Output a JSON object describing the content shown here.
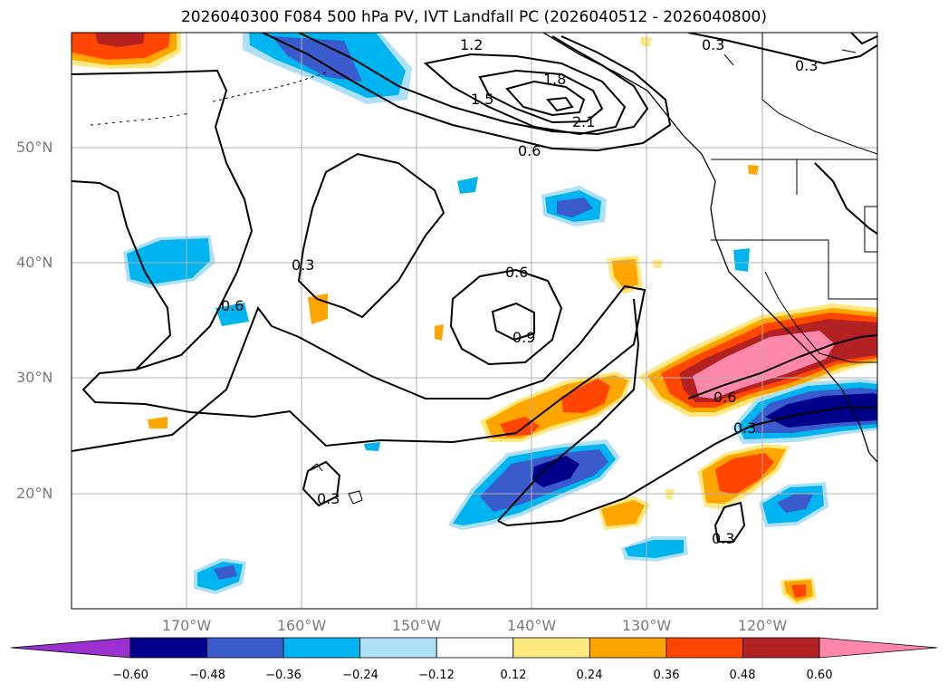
{
  "title": "2026040300 F084 500 hPa PV, IVT Landfall PC (2026040512 - 2026040800)",
  "lat_labels": [
    "50°N",
    "40°N",
    "30°N",
    "20°N"
  ],
  "lon_labels": [
    "170°W",
    "160°W",
    "150°W",
    "140°W",
    "130°W",
    "120°W"
  ],
  "contour_labels": [
    "1.2",
    "1.8",
    "1.5",
    "2.1",
    "0.6",
    "0.3",
    "0.3",
    "0.3",
    "0.6",
    "0.6",
    "0.9",
    "0.6",
    "0.3",
    "0.3",
    "0.3"
  ],
  "colorbar": {
    "ticks": [
      "−0.60",
      "−0.48",
      "−0.36",
      "−0.24",
      "−0.12",
      "0.12",
      "0.24",
      "0.36",
      "0.48",
      "0.60"
    ],
    "colors": [
      "#9b30d0",
      "#00008b",
      "#3a5bcc",
      "#00b4f0",
      "#aee0f8",
      "#ffffff",
      "#ffe880",
      "#ffa500",
      "#ff4500",
      "#b22222",
      "#ff88aa"
    ]
  }
}
